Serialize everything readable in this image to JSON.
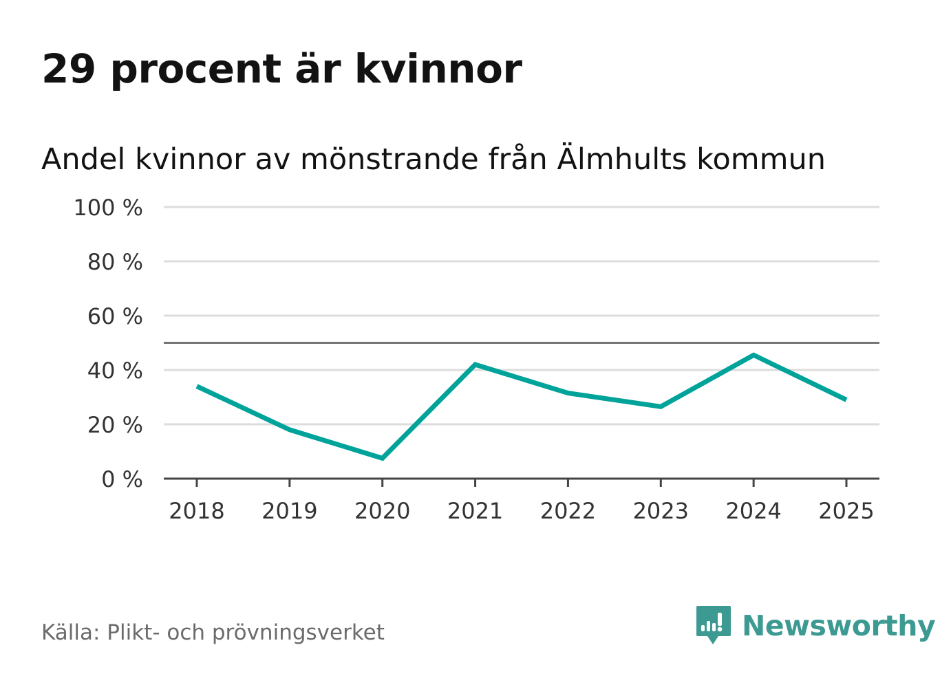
{
  "title": "29 procent är kvinnor",
  "subtitle": "Andel kvinnor av mönstrande från Älmhults kommun",
  "source": "Källa: Plikt- och prövningsverket",
  "brand": {
    "name": "Newsworthy",
    "icon": "newsworthy-logo-icon",
    "color": "#3c9a92"
  },
  "colors": {
    "series": "#00a39a",
    "grid": "#dddddd",
    "axis": "#444444",
    "reference": "#777777"
  },
  "chart_data": {
    "type": "line",
    "title": "Andel kvinnor av mönstrande från Älmhults kommun",
    "xlabel": "",
    "ylabel": "",
    "categories": [
      "2018",
      "2019",
      "2020",
      "2021",
      "2022",
      "2023",
      "2024",
      "2025"
    ],
    "series": [
      {
        "name": "Andel kvinnor",
        "values": [
          34,
          18,
          7.5,
          42,
          31.5,
          26.5,
          45.5,
          29
        ]
      }
    ],
    "ylim": [
      0,
      100
    ],
    "yticks": [
      0,
      20,
      40,
      60,
      80,
      100
    ],
    "ytick_labels": [
      "0 %",
      "20 %",
      "40 %",
      "60 %",
      "80 %",
      "100 %"
    ],
    "reference_line": 50,
    "grid": true,
    "legend": "none"
  }
}
